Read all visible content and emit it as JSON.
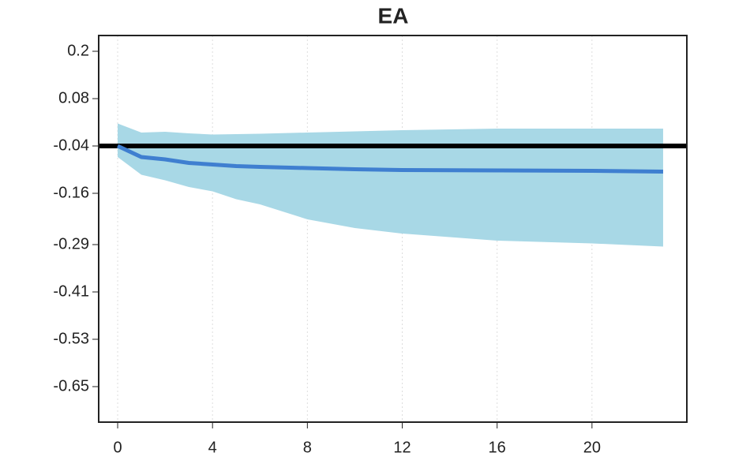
{
  "chart_data": {
    "type": "band-line",
    "title": "EA",
    "x": [
      0,
      1,
      2,
      3,
      4,
      5,
      6,
      8,
      10,
      12,
      16,
      20,
      23
    ],
    "band": {
      "color": "#a8d8e6",
      "upper": [
        0.017,
        -0.006,
        -0.004,
        -0.008,
        -0.011,
        -0.01,
        -0.009,
        -0.006,
        -0.003,
        0.0,
        0.004,
        0.004,
        0.004
      ],
      "lower": [
        -0.068,
        -0.113,
        -0.127,
        -0.144,
        -0.155,
        -0.175,
        -0.188,
        -0.226,
        -0.248,
        -0.262,
        -0.28,
        -0.287,
        -0.295
      ]
    },
    "line": {
      "color": "#3f7fd0",
      "values": [
        -0.04,
        -0.068,
        -0.074,
        -0.083,
        -0.087,
        -0.091,
        -0.093,
        -0.096,
        -0.099,
        -0.101,
        -0.102,
        -0.103,
        -0.105
      ]
    },
    "hline": -0.04,
    "hline_color": "#000000",
    "xlim": [
      -0.8,
      24
    ],
    "xticks": [
      0,
      4,
      8,
      12,
      16,
      20
    ],
    "ylim": [
      -0.74,
      0.24
    ],
    "yticks": [
      0.2,
      0.08,
      -0.04,
      -0.16,
      -0.29,
      -0.41,
      -0.53,
      -0.65
    ],
    "grid": true
  }
}
